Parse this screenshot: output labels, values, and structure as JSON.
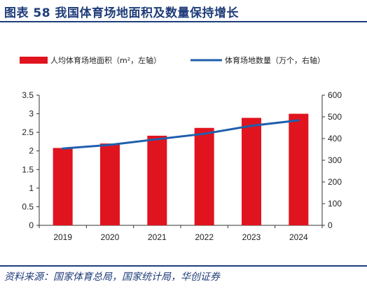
{
  "figure": {
    "title": "图表 58 我国体育场地面积及数量保持增长",
    "source": "资料来源：国家体育总局，国家统计局，华创证券"
  },
  "chart_data": {
    "type": "bar",
    "categories": [
      "2019",
      "2020",
      "2021",
      "2022",
      "2023",
      "2024"
    ],
    "series": [
      {
        "name": "人均体育场地面积（m²，左轴）",
        "type": "bar",
        "axis": "left",
        "color": "#e0141e",
        "values": [
          2.08,
          2.2,
          2.41,
          2.62,
          2.89,
          3.0
        ]
      },
      {
        "name": "体育场地数量（万个，右轴）",
        "type": "line",
        "axis": "right",
        "color": "#1f5fae",
        "values": [
          354,
          371,
          397,
          422,
          459,
          484
        ]
      }
    ],
    "y_left": {
      "lim": [
        0,
        3.5
      ],
      "ticks": [
        "0",
        "0.5",
        "1",
        "1.5",
        "2",
        "2.5",
        "3",
        "3.5"
      ]
    },
    "y_right": {
      "lim": [
        0,
        600
      ],
      "ticks": [
        "0",
        "100",
        "200",
        "300",
        "400",
        "500",
        "600"
      ]
    },
    "grid": false,
    "legend_position": "top"
  }
}
